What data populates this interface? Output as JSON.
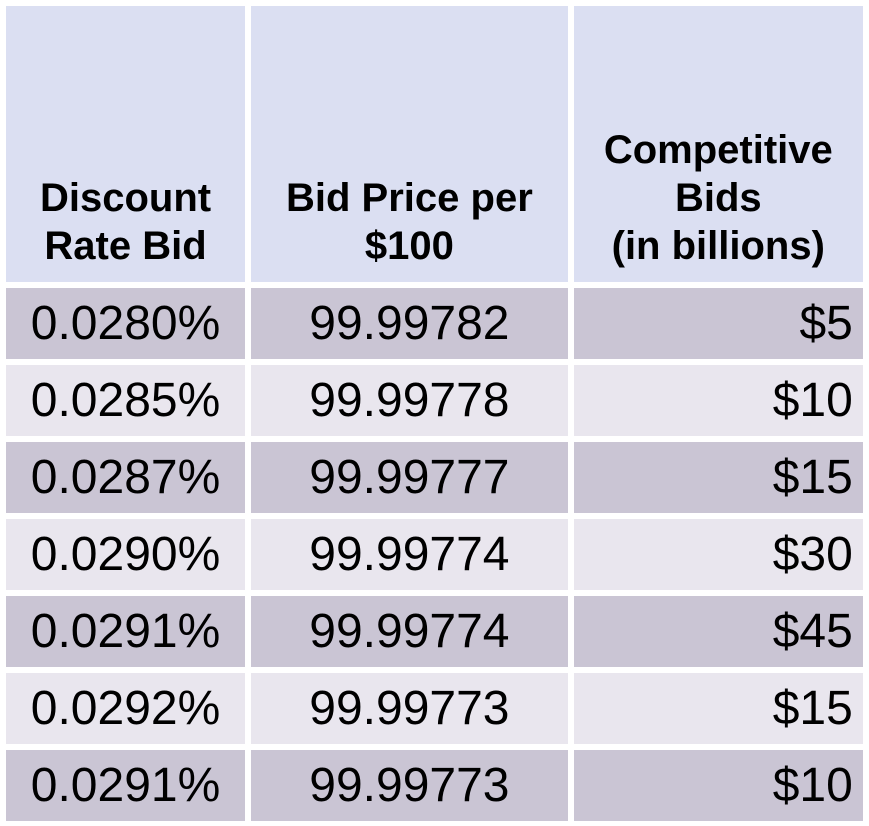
{
  "chart_data": {
    "type": "table",
    "columns": [
      "Discount Rate Bid",
      "Bid Price per $100",
      "Competitive Bids (in billions)"
    ],
    "rows": [
      [
        "0.0280%",
        "99.99782",
        "$5"
      ],
      [
        "0.0285%",
        "99.99778",
        "$10"
      ],
      [
        "0.0287%",
        "99.99777",
        "$15"
      ],
      [
        "0.0290%",
        "99.99774",
        "$30"
      ],
      [
        "0.0291%",
        "99.99774",
        "$45"
      ],
      [
        "0.0292%",
        "99.99773",
        "$15"
      ],
      [
        "0.0291%",
        "99.99773",
        "$10"
      ]
    ]
  },
  "header": {
    "col1_lines": [
      "Discount",
      "Rate Bid"
    ],
    "col2_lines": [
      "Bid Price per",
      "$100"
    ],
    "col3_lines": [
      "Competitive",
      "Bids",
      "(in billions)"
    ]
  },
  "colors": {
    "header_bg": "#dbdff2",
    "row_dark_bg": "#cac5d4",
    "row_light_bg": "#e9e6ee",
    "separator": "#ffffff",
    "text": "#000000"
  }
}
